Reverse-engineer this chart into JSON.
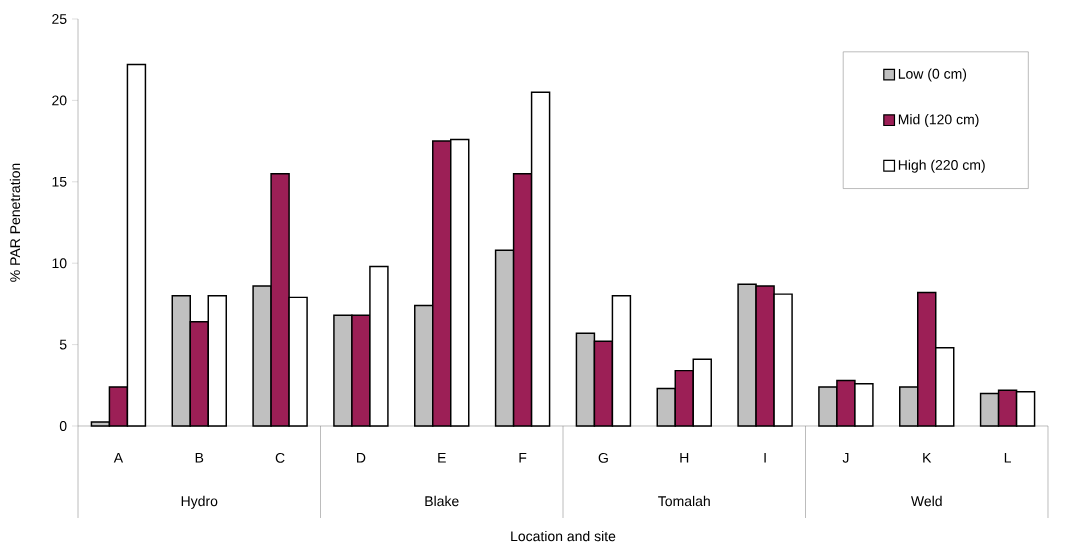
{
  "chart_data": {
    "type": "bar",
    "xlabel": "Location and site",
    "ylabel": "% PAR Penetration",
    "categories": [
      "A",
      "B",
      "C",
      "D",
      "E",
      "F",
      "G",
      "H",
      "I",
      "J",
      "K",
      "L"
    ],
    "series": [
      {
        "name": "Low (0 cm)",
        "color": "#c0c0c0",
        "values": [
          0.25,
          8.0,
          8.6,
          6.8,
          7.4,
          10.8,
          5.7,
          2.3,
          8.7,
          2.4,
          2.4,
          2.0
        ]
      },
      {
        "name": "Mid (120 cm)",
        "color": "#9c1f56",
        "values": [
          2.4,
          6.4,
          15.5,
          6.8,
          17.5,
          15.5,
          5.2,
          3.4,
          8.6,
          2.8,
          8.2,
          2.2
        ]
      },
      {
        "name": "High (220 cm)",
        "color": "#ffffff",
        "values": [
          22.2,
          8.0,
          7.9,
          9.8,
          17.6,
          20.5,
          8.0,
          4.1,
          8.1,
          2.6,
          4.8,
          2.1
        ]
      }
    ],
    "annotations": [
      "Hydro",
      "Blake",
      "Tomalah",
      "Weld"
    ],
    "ylim": [
      0,
      25
    ],
    "yticks": [
      0,
      5,
      10,
      15,
      20,
      25
    ],
    "legend": "top right"
  }
}
